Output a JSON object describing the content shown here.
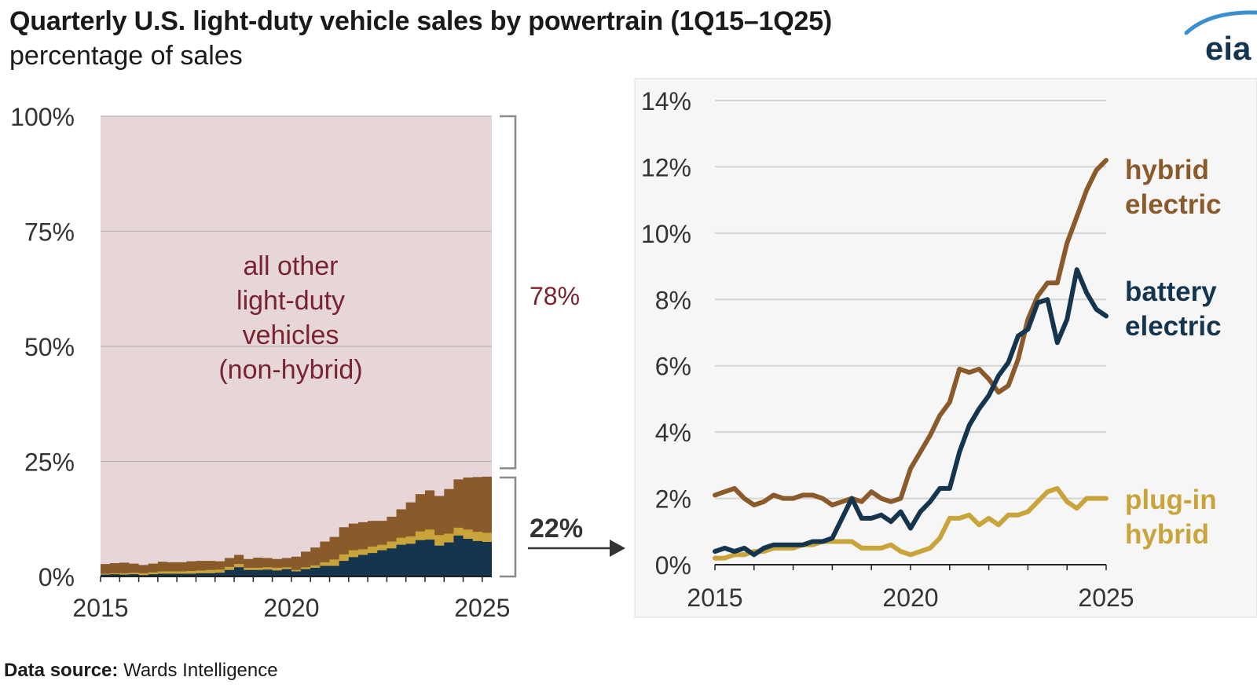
{
  "title": "Quarterly U.S. light-duty vehicle sales by powertrain (1Q15–1Q25)",
  "subtitle": "percentage of sales",
  "logo_text": "eia",
  "source": {
    "label": "Data source:",
    "text": "Wards Intelligence"
  },
  "callouts": {
    "share_other": "78%",
    "share_electrified": "22%"
  },
  "colors": {
    "hybrid": "#8b5a2b",
    "battery": "#15354f",
    "plugin": "#c8a43a",
    "other_fill": "#e6d6d8",
    "other_text": "#7a2330",
    "grid": "#d4d4d4",
    "inset_bg": "#f6f6f6",
    "bracket": "#8a8a8a",
    "axis": "#222222"
  },
  "chart_data": [
    {
      "type": "area",
      "stacked": true,
      "title": "",
      "ylabel": "percentage of sales",
      "ylim": [
        0,
        100
      ],
      "yticks": [
        0,
        25,
        50,
        75,
        100
      ],
      "ytick_labels": [
        "0%",
        "25%",
        "50%",
        "75%",
        "100%"
      ],
      "xlim": [
        2015,
        2025.25
      ],
      "xticks": [
        2015,
        2020,
        2025
      ],
      "xtick_labels": [
        "2015",
        "2020",
        "2025"
      ],
      "annotation": [
        "all other",
        "light-duty",
        "vehicles",
        "(non-hybrid)"
      ],
      "x": [
        2015,
        2015.25,
        2015.5,
        2015.75,
        2016,
        2016.25,
        2016.5,
        2016.75,
        2017,
        2017.25,
        2017.5,
        2017.75,
        2018,
        2018.25,
        2018.5,
        2018.75,
        2019,
        2019.25,
        2019.5,
        2019.75,
        2020,
        2020.25,
        2020.5,
        2020.75,
        2021,
        2021.25,
        2021.5,
        2021.75,
        2022,
        2022.25,
        2022.5,
        2022.75,
        2023,
        2023.25,
        2023.5,
        2023.75,
        2024,
        2024.25,
        2024.5,
        2024.75,
        2025
      ],
      "series": [
        {
          "name": "battery electric",
          "color_key": "battery",
          "values": [
            0.4,
            0.5,
            0.4,
            0.5,
            0.3,
            0.5,
            0.6,
            0.6,
            0.6,
            0.6,
            0.7,
            0.7,
            0.8,
            1.4,
            2.0,
            1.4,
            1.4,
            1.5,
            1.3,
            1.6,
            1.1,
            1.6,
            1.9,
            2.3,
            2.3,
            3.4,
            4.2,
            4.7,
            5.1,
            5.7,
            6.1,
            6.9,
            7.1,
            7.9,
            8.0,
            6.7,
            7.4,
            8.9,
            8.2,
            7.7,
            7.5
          ]
        },
        {
          "name": "plug-in hybrid",
          "color_key": "plugin",
          "values": [
            0.2,
            0.2,
            0.3,
            0.3,
            0.4,
            0.4,
            0.5,
            0.5,
            0.5,
            0.6,
            0.6,
            0.7,
            0.7,
            0.7,
            0.7,
            0.5,
            0.5,
            0.5,
            0.6,
            0.4,
            0.3,
            0.4,
            0.5,
            0.8,
            1.4,
            1.4,
            1.5,
            1.2,
            1.4,
            1.2,
            1.5,
            1.5,
            1.6,
            1.9,
            2.2,
            2.3,
            1.9,
            1.7,
            2.0,
            2.0,
            2.0
          ]
        },
        {
          "name": "hybrid electric",
          "color_key": "hybrid",
          "values": [
            2.1,
            2.2,
            2.3,
            2.0,
            1.8,
            1.9,
            2.1,
            2.0,
            2.0,
            2.1,
            2.1,
            2.0,
            1.8,
            1.9,
            2.0,
            1.9,
            2.2,
            2.0,
            1.9,
            2.0,
            2.9,
            3.4,
            3.9,
            4.5,
            4.9,
            5.9,
            5.8,
            5.9,
            5.6,
            5.2,
            5.4,
            6.2,
            7.4,
            8.1,
            8.5,
            8.5,
            9.7,
            10.5,
            11.3,
            11.9,
            12.2
          ]
        },
        {
          "name": "all other light-duty vehicles (non-hybrid)",
          "color_key": "other_fill",
          "remainder_to": 100
        }
      ]
    },
    {
      "type": "line",
      "title": "",
      "ylim": [
        0,
        14
      ],
      "yticks": [
        0,
        2,
        4,
        6,
        8,
        10,
        12,
        14
      ],
      "ytick_labels": [
        "0%",
        "2%",
        "4%",
        "6%",
        "8%",
        "10%",
        "12%",
        "14%"
      ],
      "xlim": [
        2015,
        2025
      ],
      "xticks": [
        2015,
        2020,
        2025
      ],
      "xtick_labels": [
        "2015",
        "2020",
        "2025"
      ],
      "x": [
        2015,
        2015.25,
        2015.5,
        2015.75,
        2016,
        2016.25,
        2016.5,
        2016.75,
        2017,
        2017.25,
        2017.5,
        2017.75,
        2018,
        2018.25,
        2018.5,
        2018.75,
        2019,
        2019.25,
        2019.5,
        2019.75,
        2020,
        2020.25,
        2020.5,
        2020.75,
        2021,
        2021.25,
        2021.5,
        2021.75,
        2022,
        2022.25,
        2022.5,
        2022.75,
        2023,
        2023.25,
        2023.5,
        2023.75,
        2024,
        2024.25,
        2024.5,
        2024.75,
        2025
      ],
      "series": [
        {
          "name": "plug-in hybrid",
          "label_lines": [
            "plug-in",
            "hybrid"
          ],
          "color_key": "plugin",
          "values": [
            0.2,
            0.2,
            0.3,
            0.3,
            0.4,
            0.4,
            0.5,
            0.5,
            0.5,
            0.6,
            0.6,
            0.7,
            0.7,
            0.7,
            0.7,
            0.5,
            0.5,
            0.5,
            0.6,
            0.4,
            0.3,
            0.4,
            0.5,
            0.8,
            1.4,
            1.4,
            1.5,
            1.2,
            1.4,
            1.2,
            1.5,
            1.5,
            1.6,
            1.9,
            2.2,
            2.3,
            1.9,
            1.7,
            2.0,
            2.0,
            2.0
          ]
        },
        {
          "name": "hybrid electric",
          "label_lines": [
            "hybrid",
            "electric"
          ],
          "color_key": "hybrid",
          "values": [
            2.1,
            2.2,
            2.3,
            2.0,
            1.8,
            1.9,
            2.1,
            2.0,
            2.0,
            2.1,
            2.1,
            2.0,
            1.8,
            1.9,
            2.0,
            1.9,
            2.2,
            2.0,
            1.9,
            2.0,
            2.9,
            3.4,
            3.9,
            4.5,
            4.9,
            5.9,
            5.8,
            5.9,
            5.6,
            5.2,
            5.4,
            6.2,
            7.4,
            8.1,
            8.5,
            8.5,
            9.7,
            10.5,
            11.3,
            11.9,
            12.2
          ]
        },
        {
          "name": "battery electric",
          "label_lines": [
            "battery",
            "electric"
          ],
          "color_key": "battery",
          "values": [
            0.4,
            0.5,
            0.4,
            0.5,
            0.3,
            0.5,
            0.6,
            0.6,
            0.6,
            0.6,
            0.7,
            0.7,
            0.8,
            1.4,
            2.0,
            1.4,
            1.4,
            1.5,
            1.3,
            1.6,
            1.1,
            1.6,
            1.9,
            2.3,
            2.3,
            3.4,
            4.2,
            4.7,
            5.1,
            5.7,
            6.1,
            6.9,
            7.1,
            7.9,
            8.0,
            6.7,
            7.4,
            8.9,
            8.2,
            7.7,
            7.5
          ]
        }
      ]
    }
  ]
}
